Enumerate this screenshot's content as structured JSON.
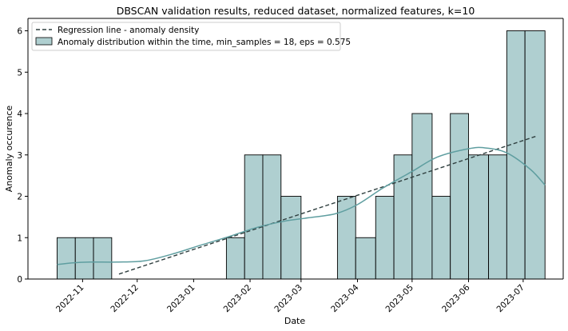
{
  "chart_data": {
    "type": "histogram",
    "title": "DBSCAN validation results, reduced dataset, normalized features, k=10",
    "xlabel": "Date",
    "ylabel": "Anomaly occurence",
    "xlim": [
      "2022-10-02",
      "2023-07-23"
    ],
    "ylim": [
      0,
      6.3
    ],
    "yticks": [
      0,
      1,
      2,
      3,
      4,
      5,
      6
    ],
    "xticks": [
      {
        "date": "2022-11-01",
        "label": "2022-11"
      },
      {
        "date": "2022-12-01",
        "label": "2022-12"
      },
      {
        "date": "2023-01-01",
        "label": "2023-01"
      },
      {
        "date": "2023-02-01",
        "label": "2023-02"
      },
      {
        "date": "2023-03-01",
        "label": "2023-03"
      },
      {
        "date": "2023-04-01",
        "label": "2023-04"
      },
      {
        "date": "2023-05-01",
        "label": "2023-05"
      },
      {
        "date": "2023-06-01",
        "label": "2023-06"
      },
      {
        "date": "2023-07-01",
        "label": "2023-07"
      }
    ],
    "bins": [
      {
        "start": "2022-10-18",
        "end": "2022-10-28",
        "count": 1
      },
      {
        "start": "2022-10-28",
        "end": "2022-11-07",
        "count": 1
      },
      {
        "start": "2022-11-07",
        "end": "2022-11-17",
        "count": 1
      },
      {
        "start": "2022-11-17",
        "end": "2022-11-28",
        "count": 0
      },
      {
        "start": "2022-11-28",
        "end": "2022-12-08",
        "count": 0
      },
      {
        "start": "2022-12-08",
        "end": "2022-12-18",
        "count": 0
      },
      {
        "start": "2022-12-18",
        "end": "2022-12-29",
        "count": 0
      },
      {
        "start": "2022-12-29",
        "end": "2023-01-08",
        "count": 0
      },
      {
        "start": "2023-01-08",
        "end": "2023-01-19",
        "count": 0
      },
      {
        "start": "2023-01-19",
        "end": "2023-01-29",
        "count": 1
      },
      {
        "start": "2023-01-29",
        "end": "2023-02-08",
        "count": 3
      },
      {
        "start": "2023-02-08",
        "end": "2023-02-18",
        "count": 3
      },
      {
        "start": "2023-02-18",
        "end": "2023-03-01",
        "count": 2
      },
      {
        "start": "2023-03-01",
        "end": "2023-03-11",
        "count": 0
      },
      {
        "start": "2023-03-11",
        "end": "2023-03-21",
        "count": 0
      },
      {
        "start": "2023-03-21",
        "end": "2023-03-31",
        "count": 2
      },
      {
        "start": "2023-03-31",
        "end": "2023-04-11",
        "count": 1
      },
      {
        "start": "2023-04-11",
        "end": "2023-04-21",
        "count": 2
      },
      {
        "start": "2023-04-21",
        "end": "2023-05-01",
        "count": 3
      },
      {
        "start": "2023-05-01",
        "end": "2023-05-12",
        "count": 4
      },
      {
        "start": "2023-05-12",
        "end": "2023-05-22",
        "count": 2
      },
      {
        "start": "2023-05-22",
        "end": "2023-06-01",
        "count": 4
      },
      {
        "start": "2023-06-01",
        "end": "2023-06-12",
        "count": 3
      },
      {
        "start": "2023-06-12",
        "end": "2023-06-22",
        "count": 3
      },
      {
        "start": "2023-06-22",
        "end": "2023-07-02",
        "count": 6
      },
      {
        "start": "2023-07-02",
        "end": "2023-07-13",
        "count": 6
      }
    ],
    "kde": [
      {
        "x": "2022-10-18",
        "y": 0.35
      },
      {
        "x": "2022-10-26",
        "y": 0.39
      },
      {
        "x": "2022-11-05",
        "y": 0.41
      },
      {
        "x": "2022-11-20",
        "y": 0.41
      },
      {
        "x": "2022-12-05",
        "y": 0.44
      },
      {
        "x": "2022-12-20",
        "y": 0.6
      },
      {
        "x": "2023-01-05",
        "y": 0.82
      },
      {
        "x": "2023-01-20",
        "y": 1.02
      },
      {
        "x": "2023-02-05",
        "y": 1.25
      },
      {
        "x": "2023-02-20",
        "y": 1.4
      },
      {
        "x": "2023-03-05",
        "y": 1.48
      },
      {
        "x": "2023-03-20",
        "y": 1.58
      },
      {
        "x": "2023-04-01",
        "y": 1.8
      },
      {
        "x": "2023-04-15",
        "y": 2.2
      },
      {
        "x": "2023-05-01",
        "y": 2.6
      },
      {
        "x": "2023-05-15",
        "y": 2.95
      },
      {
        "x": "2023-06-01",
        "y": 3.15
      },
      {
        "x": "2023-06-10",
        "y": 3.17
      },
      {
        "x": "2023-06-22",
        "y": 3.05
      },
      {
        "x": "2023-07-05",
        "y": 2.65
      },
      {
        "x": "2023-07-13",
        "y": 2.27
      }
    ],
    "regression": {
      "start": {
        "x": "2022-11-21",
        "y": 0.12
      },
      "end": {
        "x": "2023-07-08",
        "y": 3.45
      }
    },
    "legend": {
      "position": "top-left",
      "entries": [
        {
          "label": "Regression line - anomaly density",
          "style": "dashed-line"
        },
        {
          "label": "Anomaly distribution within the time, min_samples = 18, eps = 0.575",
          "style": "patch"
        }
      ]
    },
    "colors": {
      "bar_fill": "#afcfd0",
      "bar_edge": "#000000",
      "kde_line": "#5f9ea0",
      "regression_line": "#2f3f3f",
      "axis": "#000000"
    },
    "grid": false
  }
}
